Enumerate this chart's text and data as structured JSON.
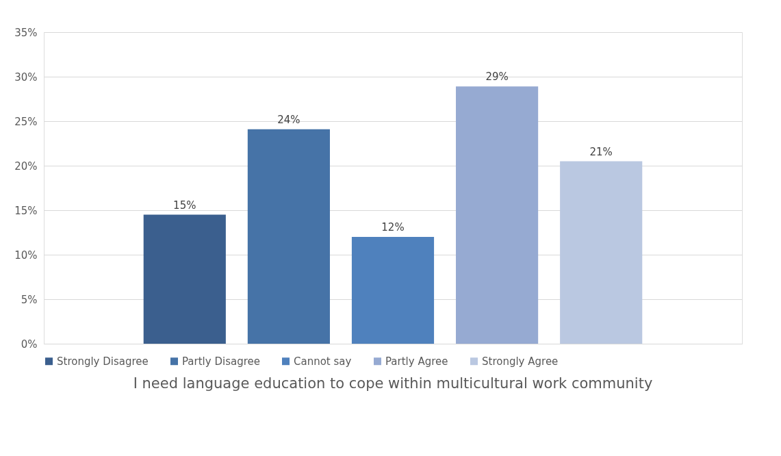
{
  "chart_data": {
    "type": "bar",
    "title": "I need language education to cope within multicultural work community",
    "categories": [
      null
    ],
    "series": [
      {
        "name": "Strongly Disagree",
        "color": "#3b5f8e",
        "values": [
          14.5
        ],
        "value_labels": [
          "15%"
        ]
      },
      {
        "name": "Partly Disagree",
        "color": "#4673a7",
        "values": [
          24.1
        ],
        "value_labels": [
          "24%"
        ]
      },
      {
        "name": "Cannot say",
        "color": "#4f81bd",
        "values": [
          12.0
        ],
        "value_labels": [
          "12%"
        ]
      },
      {
        "name": "Partly Agree",
        "color": "#96aad2",
        "values": [
          28.9
        ],
        "value_labels": [
          "29%"
        ]
      },
      {
        "name": "Strongly Agree",
        "color": "#bac8e1",
        "values": [
          20.5
        ],
        "value_labels": [
          "21%"
        ]
      }
    ],
    "ylim": [
      0,
      35
    ],
    "yticks": [
      {
        "value": 0,
        "label": "0%"
      },
      {
        "value": 5,
        "label": "5%"
      },
      {
        "value": 10,
        "label": "10%"
      },
      {
        "value": 15,
        "label": "15%"
      },
      {
        "value": 20,
        "label": "20%"
      },
      {
        "value": 25,
        "label": "25%"
      },
      {
        "value": 30,
        "label": "30%"
      },
      {
        "value": 35,
        "label": "35%"
      }
    ],
    "grid": "y",
    "legend": "bottom",
    "tick_labels": "y"
  }
}
